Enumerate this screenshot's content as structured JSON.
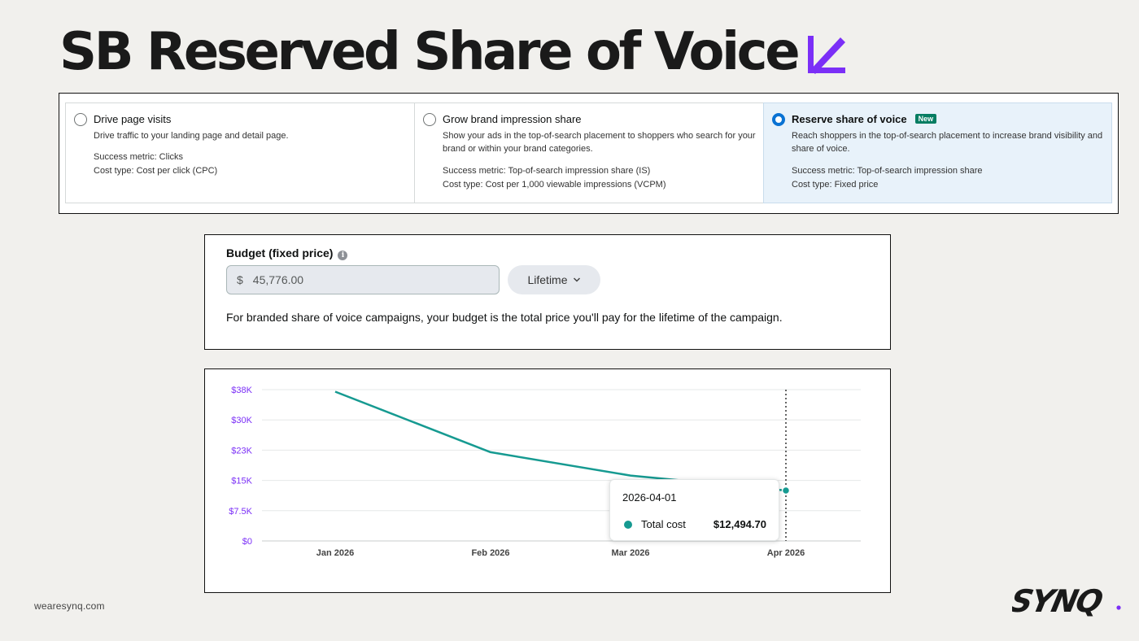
{
  "slide": {
    "title": "SB Reserved Share of Voice",
    "footer_url": "wearesynq.com",
    "logo_text": "SYNQ",
    "accent_color": "#7b2ff7"
  },
  "goals": [
    {
      "title": "Drive page visits",
      "description": "Drive traffic to your landing page and detail page.",
      "metric": "Success metric: Clicks",
      "cost": "Cost type: Cost per click (CPC)",
      "selected": false
    },
    {
      "title": "Grow brand impression share",
      "description": "Show your ads in the top-of-search placement to shoppers who search for your brand or within your brand categories.",
      "metric": "Success metric: Top-of-search impression share (IS)",
      "cost": "Cost type: Cost per 1,000 viewable impressions (VCPM)",
      "selected": false
    },
    {
      "title": "Reserve share of voice",
      "badge": "New",
      "description": "Reach shoppers in the top-of-search placement to increase brand visibility and share of voice.",
      "metric": "Success metric: Top-of-search impression share",
      "cost": "Cost type: Fixed price",
      "selected": true
    }
  ],
  "budget": {
    "label": "Budget (fixed price)",
    "currency": "$",
    "value": "45,776.00",
    "period": "Lifetime",
    "note": "For branded share of voice campaigns, your budget is the total price you'll pay for the lifetime of the campaign."
  },
  "chart_data": {
    "type": "line",
    "x": [
      "2026-01-01",
      "2026-02-01",
      "2026-03-01",
      "2026-04-01"
    ],
    "x_tick_labels": [
      "Jan 2026",
      "Feb 2026",
      "Mar 2026",
      "Apr 2026"
    ],
    "y_tick_labels": [
      "$0",
      "$7.5K",
      "$15K",
      "$23K",
      "$30K",
      "$38K"
    ],
    "ylim": [
      0,
      37500
    ],
    "series": [
      {
        "values": [
          37000,
          22000,
          16200,
          12494.7
        ],
        "color": "#169a91"
      }
    ],
    "grid": true,
    "tooltip": {
      "date": "2026-04-01",
      "label": "Total cost",
      "value": "$12,494.70"
    }
  }
}
